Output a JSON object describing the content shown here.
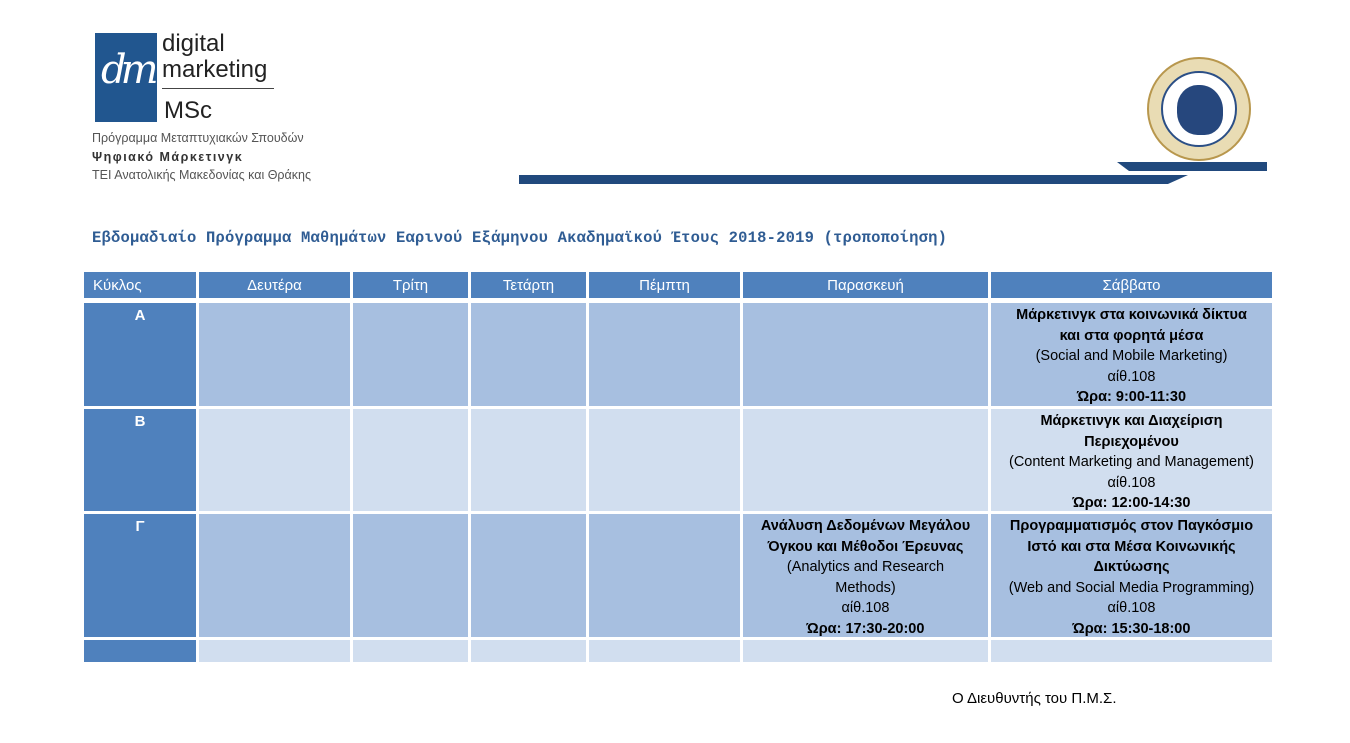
{
  "header": {
    "logo_monogram": "dm",
    "logo_line1": "digital",
    "logo_line2": "marketing",
    "logo_msc": "MSc",
    "program": "Πρόγραμμα Μεταπτυχιακών Σπουδών",
    "program_name": "Ψηφιακό Μάρκετινγκ",
    "institution": "ΤΕΙ Ανατολικής Μακεδονίας και Θράκης"
  },
  "title": "Εβδομαδιαίο Πρόγραμμα Μαθημάτων Εαρινού Εξάμηνου Ακαδημαϊκού Έτους 2018-2019 (τροποποίηση)",
  "table": {
    "headers": [
      "Κύκλος",
      "Δευτέρα",
      "Τρίτη",
      "Τετάρτη",
      "Πέμπτη",
      "Παρασκευή",
      "Σάββατο"
    ],
    "cycles": [
      "Α",
      "Β",
      "Γ"
    ],
    "saturday_a": {
      "title1": "Μάρκετινγκ στα κοινωνικά δίκτυα",
      "title2": "και στα φορητά μέσα",
      "english": "(Social and Mobile Marketing)",
      "room": "αίθ.108",
      "time": "Ώρα: 9:00-11:30"
    },
    "saturday_b": {
      "title1": "Μάρκετινγκ και Διαχείριση",
      "title2": "Περιεχομένου",
      "english": "(Content Marketing and Management)",
      "room": "αίθ.108",
      "time": "Ώρα: 12:00-14:30"
    },
    "friday_c": {
      "title1": "Ανάλυση Δεδομένων Μεγάλου",
      "title2": "Όγκου και Μέθοδοι Έρευνας",
      "english1": "(Analytics and Research",
      "english2": "Methods)",
      "room": "αίθ.108",
      "time": "Ώρα: 17:30-20:00"
    },
    "saturday_c": {
      "title1": "Προγραμματισμός στον Παγκόσμιο",
      "title2": "Ιστό και στα Μέσα Κοινωνικής",
      "title3": "Δικτύωσης",
      "english": "(Web and Social Media Programming)",
      "room": "αίθ.108",
      "time": "Ώρα: 15:30-18:00"
    }
  },
  "footer": "Ο Διευθυντής του Π.Μ.Σ.",
  "colors": {
    "header_blue": "#4f81bd",
    "dark_cell": "#a7bfe0",
    "light_cell": "#d1deef",
    "title_blue": "#2f5c93"
  },
  "icons": {
    "seal": "institution-seal-icon"
  }
}
